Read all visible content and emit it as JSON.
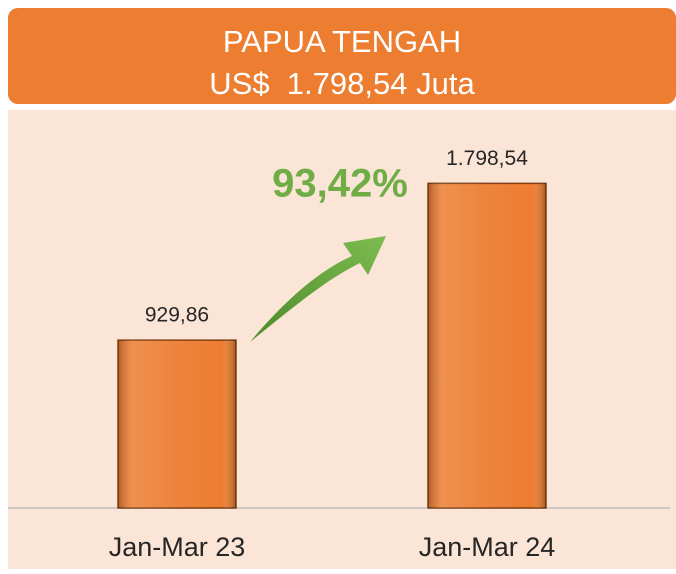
{
  "chart_data": {
    "type": "bar",
    "title": "PAPUA TENGAH",
    "subtitle": "US$  1.798,54 Juta",
    "annotation": "93,42%",
    "categories": [
      "Jan-Mar 23",
      "Jan-Mar 24"
    ],
    "values": [
      929.86,
      1798.54
    ],
    "value_labels": [
      "929,86",
      "1.798,54"
    ],
    "color": "#ed7d31",
    "ylim": [
      0,
      2000
    ]
  }
}
